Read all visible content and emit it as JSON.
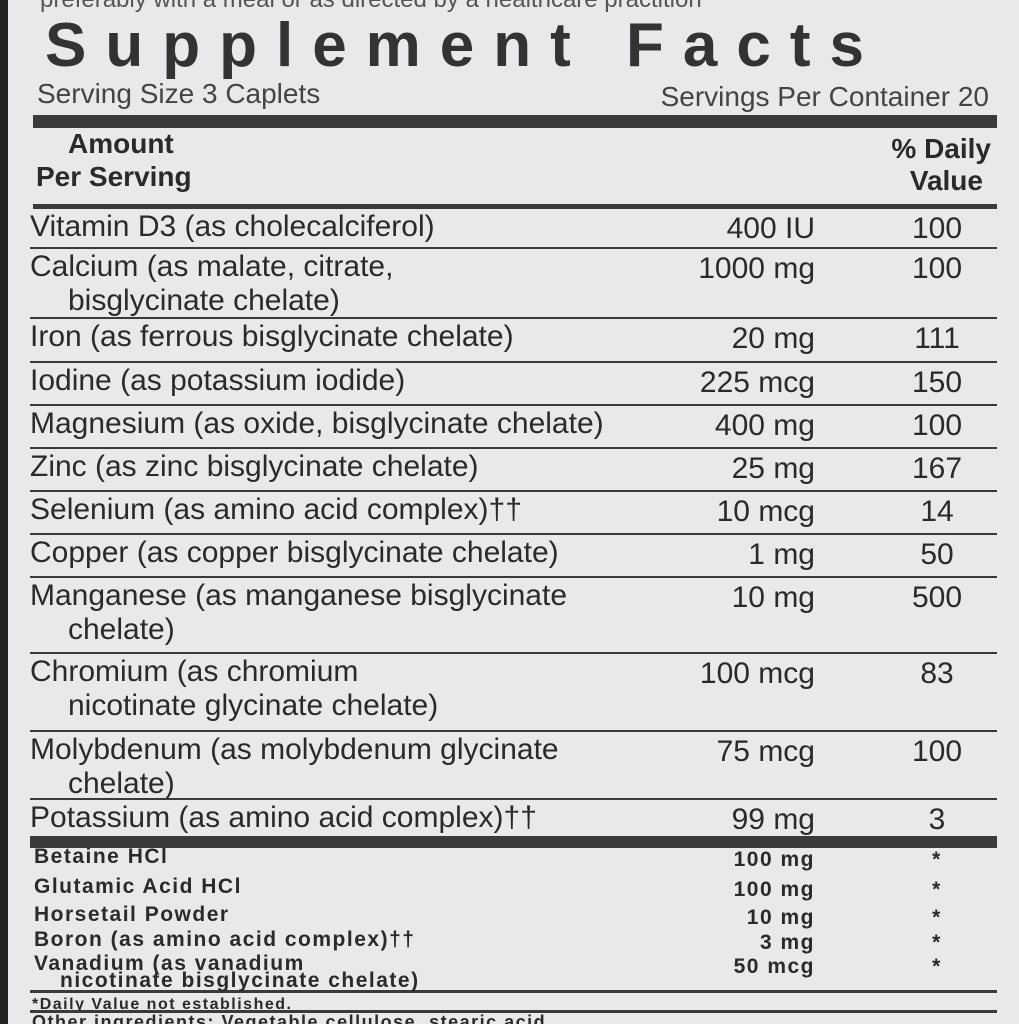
{
  "top_cut_text": "preferably with a meal or as directed by a healthcare practition",
  "header": {
    "title": "Supplement Facts",
    "serving_size": "Serving Size 3 Caplets",
    "servings_per_container": "Servings Per Container 20",
    "col_amount": [
      "Amount",
      "Per Serving"
    ],
    "col_dv": [
      "% Daily",
      "Value"
    ]
  },
  "rows": [
    {
      "name": [
        "Vitamin D3 (as cholecalciferol)"
      ],
      "amount": "400 IU",
      "dv": "100"
    },
    {
      "name": [
        "Calcium (as malate, citrate,",
        "bisglycinate chelate)"
      ],
      "amount": "1000 mg",
      "dv": "100"
    },
    {
      "name": [
        "Iron (as ferrous bisglycinate chelate)"
      ],
      "amount": "20 mg",
      "dv": "111"
    },
    {
      "name": [
        "Iodine (as potassium iodide)"
      ],
      "amount": "225 mcg",
      "dv": "150"
    },
    {
      "name": [
        "Magnesium (as oxide, bisglycinate chelate)"
      ],
      "amount": "400 mg",
      "dv": "100"
    },
    {
      "name": [
        "Zinc (as zinc bisglycinate chelate)"
      ],
      "amount": "25 mg",
      "dv": "167"
    },
    {
      "name": [
        "Selenium (as amino acid complex)††"
      ],
      "amount": "10 mcg",
      "dv": "14"
    },
    {
      "name": [
        "Copper (as copper bisglycinate chelate)"
      ],
      "amount": "1 mg",
      "dv": "50"
    },
    {
      "name": [
        "Manganese (as manganese bisglycinate",
        "chelate)"
      ],
      "amount": "10 mg",
      "dv": "500"
    },
    {
      "name": [
        "Chromium (as chromium",
        "nicotinate glycinate chelate)"
      ],
      "amount": "100 mcg",
      "dv": "83"
    },
    {
      "name": [
        "Molybdenum (as molybdenum glycinate",
        "chelate)"
      ],
      "amount": "75 mcg",
      "dv": "100"
    },
    {
      "name": [
        "Potassium (as amino acid complex)††"
      ],
      "amount": "99 mg",
      "dv": "3"
    }
  ],
  "other_rows": [
    {
      "name": [
        "Betaine HCl"
      ],
      "amount": "100 mg",
      "dv": "*"
    },
    {
      "name": [
        "Glutamic Acid HCl"
      ],
      "amount": "100 mg",
      "dv": "*"
    },
    {
      "name": [
        "Horsetail Powder"
      ],
      "amount": "10 mg",
      "dv": "*"
    },
    {
      "name": [
        "Boron (as amino acid complex)††"
      ],
      "amount": "3 mg",
      "dv": "*"
    },
    {
      "name": [
        "Vanadium (as vanadium",
        "nicotinate bisglycinate chelate)"
      ],
      "amount": "50 mcg",
      "dv": "*"
    }
  ],
  "footnote": "*Daily Value not established.",
  "other_ingredients": "Other ingredients: Vegetable cellulose, stearic acid"
}
